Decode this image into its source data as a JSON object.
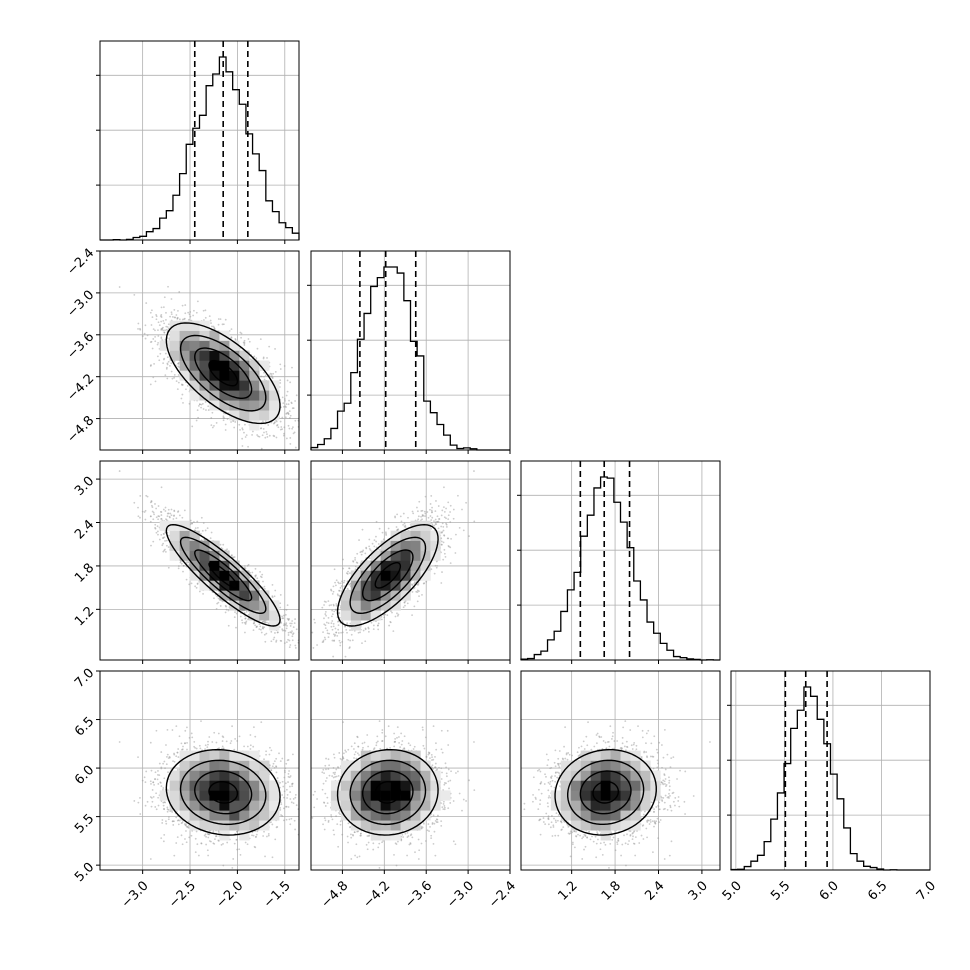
{
  "chart_data": {
    "type": "corner",
    "title": "",
    "grid": true,
    "parameters": [
      {
        "xlim": [
          -3.45,
          -1.35
        ],
        "ticks": [
          -3.0,
          -2.5,
          -2.0,
          -1.5
        ],
        "tick_labels": [
          "−3.0",
          "−2.5",
          "−2.0",
          "−1.5"
        ],
        "mean": -2.15,
        "std": 0.3,
        "quantiles": [
          -2.45,
          -2.15,
          -1.89
        ]
      },
      {
        "xlim": [
          -5.25,
          -2.4
        ],
        "ticks": [
          -4.8,
          -4.2,
          -3.6,
          -3.0,
          -2.4
        ],
        "tick_labels": [
          "−4.8",
          "−4.2",
          "−3.6",
          "−3.0",
          "−2.4"
        ],
        "mean": -4.15,
        "std": 0.36,
        "quantiles": [
          -4.55,
          -4.18,
          -3.75
        ]
      },
      {
        "xlim": [
          0.5,
          3.25
        ],
        "ticks": [
          1.2,
          1.8,
          2.4,
          3.0
        ],
        "tick_labels": [
          "1.2",
          "1.8",
          "2.4",
          "3.0"
        ],
        "mean": 1.67,
        "std": 0.35,
        "quantiles": [
          1.32,
          1.65,
          2.0
        ]
      },
      {
        "xlim": [
          4.95,
          7.0
        ],
        "ticks": [
          5.0,
          5.5,
          6.0,
          6.5,
          7.0
        ],
        "tick_labels": [
          "5.0",
          "5.5",
          "6.0",
          "6.5",
          "7.0"
        ],
        "mean": 5.75,
        "std": 0.22,
        "quantiles": [
          5.51,
          5.72,
          5.94
        ]
      }
    ],
    "correlations": [
      [
        1,
        -0.65,
        -0.88,
        -0.1
      ],
      [
        -0.65,
        1,
        0.72,
        0.05
      ],
      [
        -0.88,
        0.72,
        1,
        0.08
      ],
      [
        -0.1,
        0.05,
        0.08,
        1
      ]
    ],
    "histogram_bins": 30,
    "contour_levels": 4,
    "colors": {
      "line": "#000000",
      "grid": "#b0b0b0",
      "points": "#9a9a9a",
      "background": "#ffffff"
    }
  }
}
